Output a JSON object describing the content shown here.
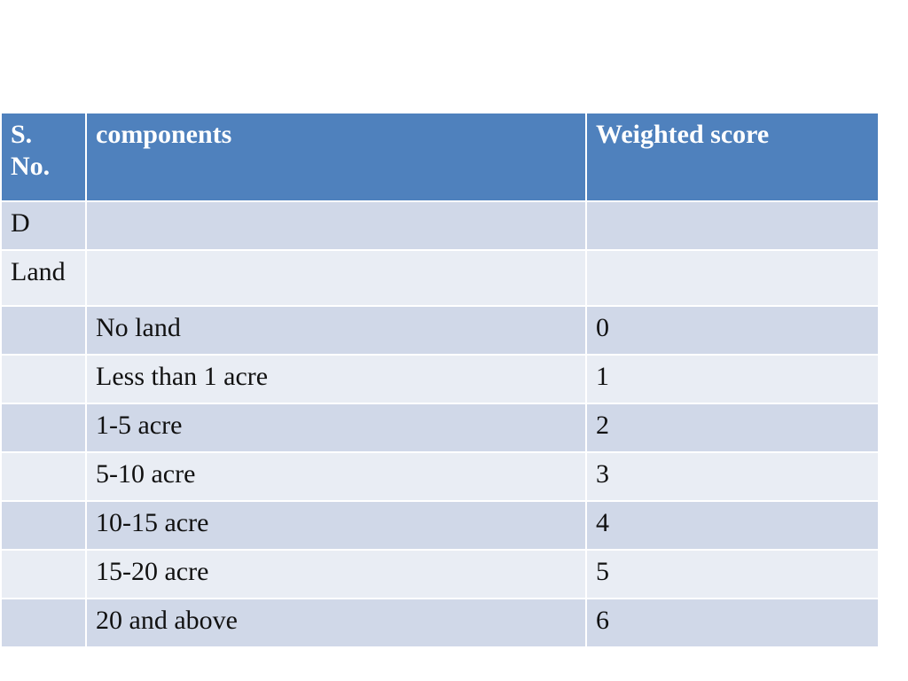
{
  "table": {
    "headers": [
      "S. No.",
      "components",
      "Weighted score"
    ],
    "rows": [
      [
        "D",
        "",
        ""
      ],
      [
        "Land",
        "",
        ""
      ],
      [
        "",
        "No land",
        "0"
      ],
      [
        "",
        "Less than 1 acre",
        "1"
      ],
      [
        "",
        "1-5 acre",
        "2"
      ],
      [
        "",
        "5-10 acre",
        "3"
      ],
      [
        "",
        "10-15 acre",
        "4"
      ],
      [
        "",
        "15-20 acre",
        "5"
      ],
      [
        "",
        "20 and above",
        "6"
      ]
    ]
  },
  "colors": {
    "header_bg": "#4f81bd",
    "row_dark": "#d0d8e8",
    "row_light": "#e9edf4"
  }
}
